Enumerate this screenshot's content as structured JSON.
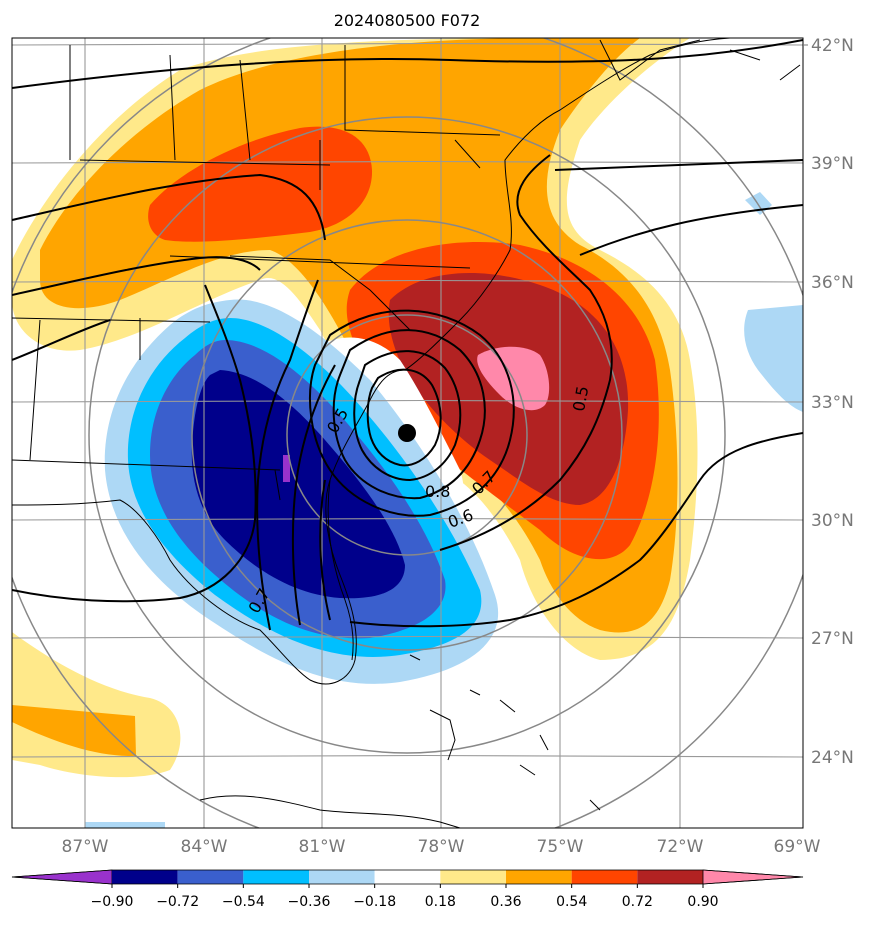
{
  "title": "2024080500 F072",
  "map": {
    "lat_labels": [
      "42°N",
      "39°N",
      "36°N",
      "33°N",
      "30°N",
      "27°N",
      "24°N"
    ],
    "lon_labels": [
      "87°W",
      "84°W",
      "81°W",
      "78°W",
      "75°W",
      "72°W",
      "69°W"
    ],
    "contour_labels": [
      "0.8",
      "0.7",
      "0.6",
      "0.5",
      "0.7",
      "0.5"
    ],
    "marker": "storm-center-dot"
  },
  "colorbar": {
    "levels": [
      "−0.90",
      "−0.72",
      "−0.54",
      "−0.36",
      "−0.18",
      "0.18",
      "0.36",
      "0.54",
      "0.72",
      "0.90"
    ],
    "colors": [
      "#9932cc",
      "#00008b",
      "#3a5fcd",
      "#00bfff",
      "#add8f5",
      "#ffffff",
      "#ffe98a",
      "#ffa500",
      "#ff4500",
      "#b22222",
      "#ff88aa"
    ]
  }
}
